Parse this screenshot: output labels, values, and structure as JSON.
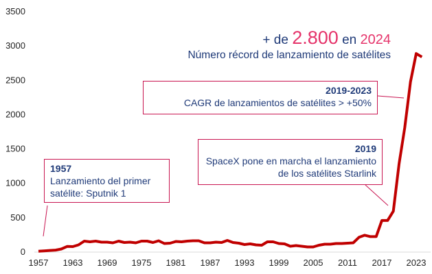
{
  "headline": {
    "prefix": "+ de",
    "value": "2.800",
    "mid": "en",
    "year": "2024",
    "subtitle": "Número récord de lanzamiento de satélites"
  },
  "annotations": [
    {
      "title": "1957",
      "text": "Lanzamiento del primer satélite: Sputnik 1"
    },
    {
      "title": "2019",
      "text": "SpaceX pone en marcha el lanzamiento de los satélites Starlink"
    },
    {
      "title": "2019-2023",
      "text": "CAGR de lanzamientos de satélites > +50%"
    }
  ],
  "chart_data": {
    "type": "line",
    "title": "",
    "xlabel": "",
    "ylabel": "",
    "ylim": [
      0,
      3500
    ],
    "xlim": [
      1957,
      2024
    ],
    "yticks": [
      0,
      500,
      1000,
      1500,
      2000,
      2500,
      3000,
      3500
    ],
    "xticks": [
      1957,
      1963,
      1969,
      1975,
      1981,
      1987,
      1993,
      1999,
      2005,
      2011,
      2017,
      2023
    ],
    "grid": false,
    "color": "#c00000",
    "x": [
      1957,
      1958,
      1959,
      1960,
      1961,
      1962,
      1963,
      1964,
      1965,
      1966,
      1967,
      1968,
      1969,
      1970,
      1971,
      1972,
      1973,
      1974,
      1975,
      1976,
      1977,
      1978,
      1979,
      1980,
      1981,
      1982,
      1983,
      1984,
      1985,
      1986,
      1987,
      1988,
      1989,
      1990,
      1991,
      1992,
      1993,
      1994,
      1995,
      1996,
      1997,
      1998,
      1999,
      2000,
      2001,
      2002,
      2003,
      2004,
      2005,
      2006,
      2007,
      2008,
      2009,
      2010,
      2011,
      2012,
      2013,
      2014,
      2015,
      2016,
      2017,
      2018,
      2019,
      2020,
      2021,
      2022,
      2023,
      2024
    ],
    "y": [
      2,
      8,
      14,
      19,
      35,
      72,
      70,
      95,
      150,
      140,
      150,
      135,
      135,
      125,
      150,
      130,
      135,
      125,
      150,
      150,
      130,
      155,
      115,
      120,
      145,
      140,
      150,
      155,
      155,
      125,
      125,
      135,
      130,
      160,
      130,
      120,
      100,
      110,
      95,
      90,
      140,
      140,
      115,
      110,
      75,
      85,
      75,
      65,
      65,
      90,
      105,
      105,
      115,
      115,
      120,
      125,
      205,
      235,
      215,
      215,
      450,
      450,
      585,
      1270,
      1800,
      2470,
      2880,
      2830
    ]
  }
}
